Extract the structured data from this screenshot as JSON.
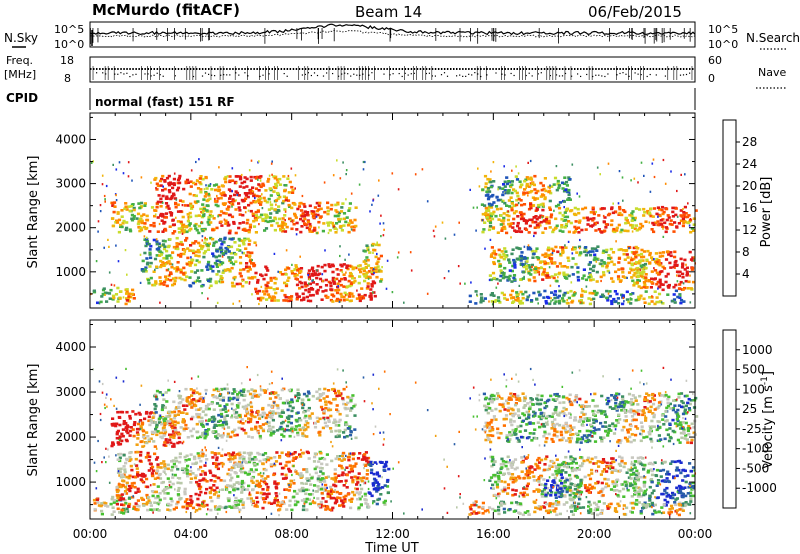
{
  "header": {
    "station": "McMurdo (fitACF)",
    "beam": "Beam 14",
    "date": "06/Feb/2015"
  },
  "strip_panels": {
    "noise": {
      "left_label": "N.Sky",
      "right_label": "N.Search",
      "left_ticks": [
        "10^5",
        "10^0"
      ],
      "right_ticks": [
        "10^5",
        "10^0"
      ]
    },
    "freq": {
      "left_label_lines": [
        "Freq.",
        "[MHz]"
      ],
      "right_label": "Nave",
      "left_ticks": [
        "18",
        "8"
      ],
      "right_ticks": [
        "60",
        "0"
      ]
    },
    "cpid": {
      "label": "CPID",
      "value": "normal (fast) 151 RF"
    }
  },
  "chart_data": [
    {
      "type": "heatmap",
      "panel": "power",
      "ylabel": "Slant Range [km]",
      "xlabel": "",
      "x_ticks": [
        "00:00",
        "04:00",
        "08:00",
        "12:00",
        "16:00",
        "20:00",
        "00:00"
      ],
      "xlim_hours": [
        0,
        24
      ],
      "y_ticks": [
        1000,
        2000,
        3000,
        4000
      ],
      "ylim": [
        180,
        4600
      ],
      "colorbar": {
        "label": "Power [dB]",
        "ticks": [
          "4",
          "8",
          "12",
          "16",
          "20",
          "24",
          "28"
        ],
        "range": [
          0,
          32
        ],
        "colors": [
          "#1a2be8",
          "#1e54b8",
          "#3c8f62",
          "#44b044",
          "#c8dc2c",
          "#f2b40a",
          "#ff8c00",
          "#ff5000",
          "#e01818"
        ]
      },
      "echo_regions": [
        {
          "t_start": 0.1,
          "t_end": 1.7,
          "r_min": 300,
          "r_max": 700,
          "level": 0.5
        },
        {
          "t_start": 0.8,
          "t_end": 10.5,
          "r_min": 1900,
          "r_max": 2600,
          "level": 0.7
        },
        {
          "t_start": 2.5,
          "t_end": 8.0,
          "r_min": 2600,
          "r_max": 3200,
          "level": 0.8
        },
        {
          "t_start": 6.5,
          "t_end": 11.3,
          "r_min": 350,
          "r_max": 1200,
          "level": 0.9
        },
        {
          "t_start": 2.0,
          "t_end": 6.5,
          "r_min": 700,
          "r_max": 1800,
          "level": 0.5
        },
        {
          "t_start": 10.8,
          "t_end": 11.5,
          "r_min": 800,
          "r_max": 1700,
          "level": 0.4
        },
        {
          "t_start": 15.5,
          "t_end": 24.0,
          "r_min": 1900,
          "r_max": 2500,
          "level": 0.75
        },
        {
          "t_start": 15.5,
          "t_end": 19.0,
          "r_min": 2500,
          "r_max": 3200,
          "level": 0.5
        },
        {
          "t_start": 15.8,
          "t_end": 22.0,
          "r_min": 800,
          "r_max": 1600,
          "level": 0.5
        },
        {
          "t_start": 21.5,
          "t_end": 23.9,
          "r_min": 600,
          "r_max": 1500,
          "level": 0.85
        },
        {
          "t_start": 15.0,
          "t_end": 23.5,
          "r_min": 300,
          "r_max": 600,
          "level": 0.35
        }
      ]
    },
    {
      "type": "heatmap",
      "panel": "velocity",
      "ylabel": "Slant Range [km]",
      "xlabel": "Time UT",
      "x_ticks": [
        "00:00",
        "04:00",
        "08:00",
        "12:00",
        "16:00",
        "20:00",
        "00:00"
      ],
      "xlim_hours": [
        0,
        24
      ],
      "y_ticks": [
        1000,
        2000,
        3000,
        4000
      ],
      "ylim": [
        180,
        4600
      ],
      "colorbar": {
        "label": "Velocity [m s^-1]",
        "ticks": [
          "1000",
          "500",
          "100",
          "25",
          "-25",
          "-100",
          "-500",
          "-1000"
        ],
        "range": [
          -1250,
          1250
        ],
        "colors": [
          "#1a2bd0",
          "#2a5ea8",
          "#3c8f62",
          "#48c030",
          "#b8c8a8",
          "#c8c8c0",
          "#f2a010",
          "#ff7000",
          "#e01818"
        ]
      },
      "echo_regions": [
        {
          "t_start": 0.1,
          "t_end": 1.7,
          "r_min": 300,
          "r_max": 700,
          "level": 0.62
        },
        {
          "t_start": 0.8,
          "t_end": 3.5,
          "r_min": 1800,
          "r_max": 2600,
          "level": 0.9
        },
        {
          "t_start": 2.5,
          "t_end": 10.5,
          "r_min": 2000,
          "r_max": 3100,
          "level": 0.55
        },
        {
          "t_start": 1.0,
          "t_end": 11.0,
          "r_min": 400,
          "r_max": 1700,
          "level": 0.7
        },
        {
          "t_start": 11.0,
          "t_end": 11.8,
          "r_min": 500,
          "r_max": 1500,
          "level": 0.2
        },
        {
          "t_start": 15.5,
          "t_end": 24.0,
          "r_min": 1900,
          "r_max": 3000,
          "level": 0.5
        },
        {
          "t_start": 15.8,
          "t_end": 22.0,
          "r_min": 700,
          "r_max": 1600,
          "level": 0.65
        },
        {
          "t_start": 18.0,
          "t_end": 19.5,
          "r_min": 600,
          "r_max": 1200,
          "level": 0.15
        },
        {
          "t_start": 21.5,
          "t_end": 23.9,
          "r_min": 500,
          "r_max": 1500,
          "level": 0.25
        },
        {
          "t_start": 15.0,
          "t_end": 23.5,
          "r_min": 300,
          "r_max": 600,
          "level": 0.55
        }
      ]
    }
  ]
}
